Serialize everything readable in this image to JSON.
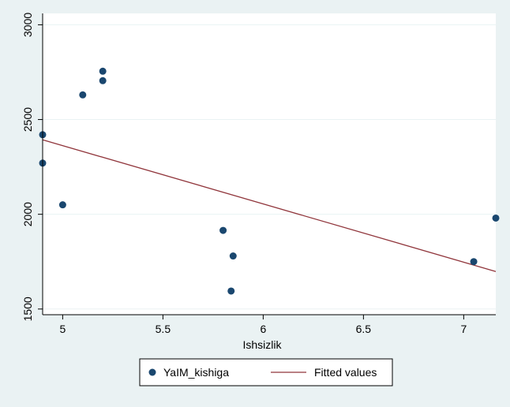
{
  "chart_data": {
    "type": "scatter",
    "title": "",
    "xlabel": "Ishsizlik",
    "ylabel": "",
    "xlim": [
      4.9,
      7.16
    ],
    "ylim": [
      1470,
      3060
    ],
    "xticks": [
      5,
      5.5,
      6,
      6.5,
      7
    ],
    "xtick_labels": [
      "5",
      "5.5",
      "6",
      "6.5",
      "7"
    ],
    "yticks": [
      1500,
      2000,
      2500,
      3000
    ],
    "ytick_labels": [
      "1500",
      "2000",
      "2500",
      "3000"
    ],
    "grid": "horizontal",
    "legend_position": "bottom",
    "series": [
      {
        "name": "YaIM_kishiga",
        "kind": "scatter",
        "color": "#1a476f",
        "points": [
          {
            "x": 4.9,
            "y": 2420
          },
          {
            "x": 4.9,
            "y": 2270
          },
          {
            "x": 5.0,
            "y": 2050
          },
          {
            "x": 5.1,
            "y": 2630
          },
          {
            "x": 5.2,
            "y": 2755
          },
          {
            "x": 5.2,
            "y": 2705
          },
          {
            "x": 5.8,
            "y": 1915
          },
          {
            "x": 5.85,
            "y": 1780
          },
          {
            "x": 5.84,
            "y": 1595
          },
          {
            "x": 7.05,
            "y": 1750
          },
          {
            "x": 7.16,
            "y": 1980
          }
        ]
      },
      {
        "name": "Fitted values",
        "kind": "line",
        "color": "#90353b",
        "points": [
          {
            "x": 4.9,
            "y": 2393
          },
          {
            "x": 7.16,
            "y": 1698
          }
        ]
      }
    ]
  },
  "colors": {
    "background": "#eaf2f3",
    "plot_area": "#ffffff",
    "grid": "#eaf2f3",
    "marker": "#1a476f",
    "fit_line": "#90353b"
  }
}
